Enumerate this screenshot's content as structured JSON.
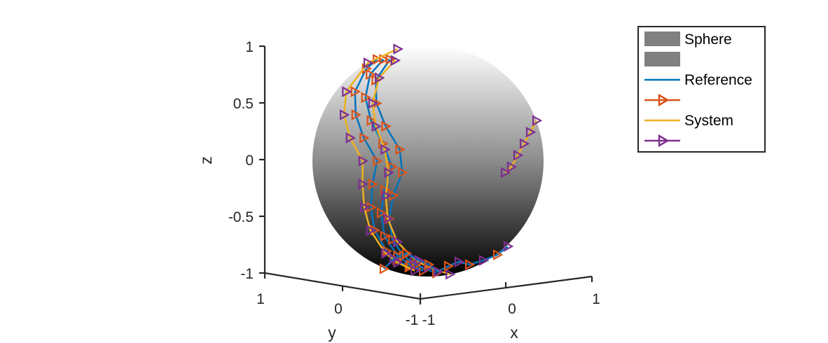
{
  "chart_data": {
    "type": "line",
    "subtype": "3d-trajectories-on-unit-sphere",
    "title": "",
    "xlabel": "x",
    "ylabel": "y",
    "zlabel": "z",
    "xlim": [
      -1,
      1
    ],
    "ylim": [
      -1,
      1
    ],
    "zlim": [
      -1,
      1
    ],
    "x_ticks": [
      "-1",
      "0",
      "1"
    ],
    "y_ticks": [
      "1",
      "0",
      "-1"
    ],
    "z_ticks": [
      "1",
      "0.5",
      "0",
      "-0.5",
      "-1"
    ],
    "grid": false,
    "legend_position": "top-right",
    "legend": [
      {
        "label": "Sphere",
        "kind": "patch"
      },
      {
        "label": "",
        "kind": "patch"
      },
      {
        "label": "Reference",
        "kind": "line"
      },
      {
        "label": "",
        "kind": "line-marker"
      },
      {
        "label": "System",
        "kind": "line"
      },
      {
        "label": "",
        "kind": "line-marker"
      }
    ],
    "colors": {
      "reference": "#0072BD",
      "reference_markers": "#D95319",
      "system": "#EDB120",
      "system_markers": "#7E2F8E",
      "sphere_top": "#ffffff",
      "sphere_bottom": "#000000",
      "axis": "#262626"
    },
    "series": [
      {
        "group": "reference",
        "z": [
          0.88,
          0.8,
          0.6,
          0.4,
          0.2,
          0.0,
          -0.2,
          -0.4,
          -0.6,
          -0.78,
          -0.86,
          -0.92
        ]
      },
      {
        "group": "reference",
        "z": [
          0.88,
          0.75,
          0.55,
          0.35,
          0.15,
          -0.05,
          -0.25,
          -0.45,
          -0.65,
          -0.82,
          -0.9,
          -0.95
        ]
      },
      {
        "group": "reference",
        "z": [
          0.88,
          0.7,
          0.5,
          0.3,
          0.1,
          -0.1,
          -0.3,
          -0.5,
          -0.68,
          -0.82,
          -0.9,
          -0.97
        ]
      },
      {
        "group": "system",
        "z": [
          0.97,
          0.85,
          0.6,
          0.4,
          0.2,
          0.0,
          -0.2,
          -0.4,
          -0.6,
          -0.8,
          -0.88,
          -0.95
        ]
      },
      {
        "group": "system",
        "z": [
          0.87,
          0.72,
          0.5,
          0.3,
          0.1,
          -0.1,
          -0.3,
          -0.5,
          -0.7,
          -0.85,
          -0.92,
          -0.98
        ]
      },
      {
        "group": "system",
        "z": [
          0.35,
          0.25,
          0.15,
          0.05,
          -0.05,
          -0.1
        ]
      }
    ]
  }
}
